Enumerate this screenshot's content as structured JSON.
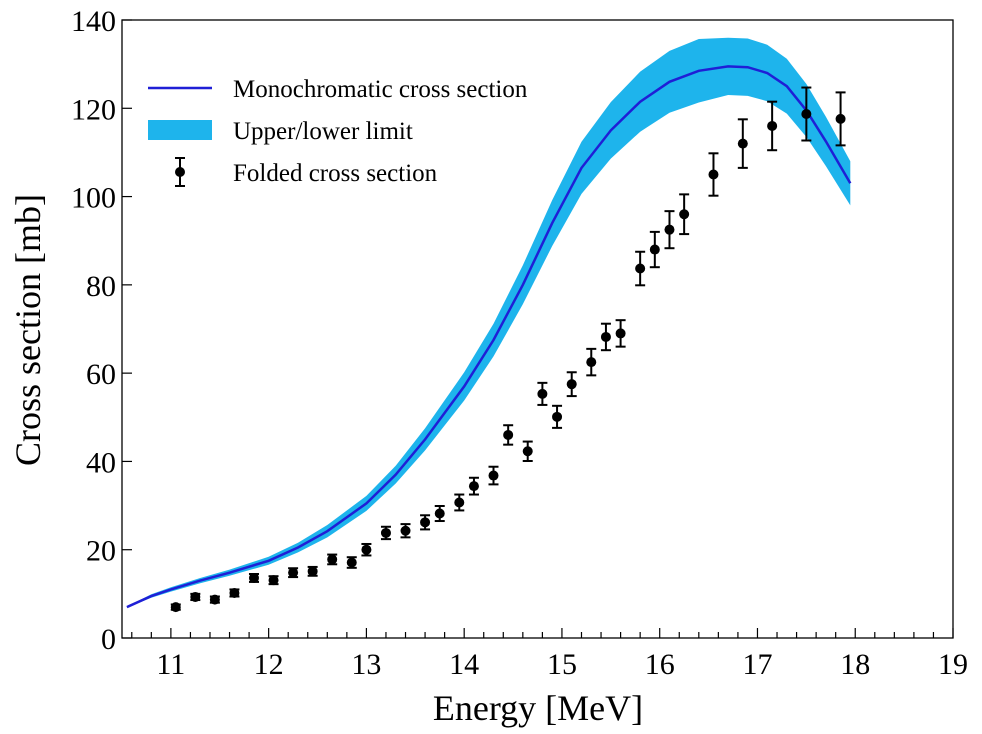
{
  "chart_data": {
    "type": "line",
    "xlabel": "Energy [MeV]",
    "ylabel": "Cross section [mb]",
    "xlim": [
      10.5,
      19
    ],
    "ylim": [
      0,
      140
    ],
    "xticks": [
      11,
      12,
      13,
      14,
      15,
      16,
      17,
      18,
      19
    ],
    "yticks": [
      0,
      20,
      40,
      60,
      80,
      100,
      120,
      140
    ],
    "grid": false,
    "legend_position": "top-left",
    "colors": {
      "curve": "#1f1fd6",
      "band": "#1eb4ec",
      "points": "#000000"
    },
    "series": [
      {
        "name": "Monochromatic cross section",
        "kind": "line",
        "x": [
          10.55,
          10.8,
          11.0,
          11.3,
          11.6,
          12.0,
          12.3,
          12.6,
          13.0,
          13.3,
          13.6,
          14.0,
          14.3,
          14.6,
          14.9,
          15.2,
          15.5,
          15.8,
          16.1,
          16.4,
          16.7,
          16.9,
          17.1,
          17.3,
          17.5,
          17.7,
          17.95
        ],
        "y": [
          7,
          9.5,
          11,
          13,
          14.8,
          17.5,
          20.5,
          24.2,
          30.5,
          37,
          45,
          57,
          67.5,
          80,
          94,
          106.5,
          115,
          121.5,
          126,
          128.5,
          129.5,
          129.3,
          128,
          125,
          119.5,
          112.5,
          103
        ]
      },
      {
        "name": "Upper/lower limit",
        "kind": "band",
        "x": [
          10.55,
          10.8,
          11.0,
          11.3,
          11.6,
          12.0,
          12.3,
          12.6,
          13.0,
          13.3,
          13.6,
          14.0,
          14.3,
          14.6,
          14.9,
          15.2,
          15.5,
          15.8,
          16.1,
          16.4,
          16.7,
          16.9,
          17.1,
          17.3,
          17.5,
          17.7,
          17.95
        ],
        "upper": [
          7.1,
          9.9,
          11.5,
          13.6,
          15.5,
          18.4,
          21.6,
          25.6,
          32.2,
          39.0,
          47.5,
          60.2,
          71.2,
          84.4,
          99.2,
          112.4,
          121.4,
          128.3,
          133.0,
          135.7,
          136.0,
          135.8,
          134.4,
          131.2,
          125.5,
          118.1,
          108.0
        ],
        "lower": [
          6.9,
          9.1,
          10.5,
          12.4,
          14.1,
          16.6,
          19.4,
          22.8,
          28.8,
          35.0,
          42.5,
          53.8,
          63.8,
          75.6,
          88.8,
          100.6,
          108.6,
          114.7,
          119.0,
          121.3,
          123.0,
          122.8,
          121.6,
          118.8,
          113.5,
          106.9,
          98.0
        ]
      },
      {
        "name": "Folded cross section",
        "kind": "scatter-errorbar",
        "x": [
          11.05,
          11.25,
          11.45,
          11.65,
          11.85,
          12.05,
          12.25,
          12.45,
          12.65,
          12.85,
          13.0,
          13.2,
          13.4,
          13.6,
          13.75,
          13.95,
          14.1,
          14.3,
          14.45,
          14.65,
          14.8,
          14.95,
          15.1,
          15.3,
          15.45,
          15.6,
          15.8,
          15.95,
          16.1,
          16.25,
          16.55,
          16.85,
          17.15,
          17.5,
          17.85
        ],
        "y": [
          7,
          9.3,
          8.7,
          10.2,
          13.6,
          13.1,
          14.8,
          15.1,
          17.8,
          17.1,
          20,
          23.8,
          24.3,
          26.2,
          28.2,
          30.7,
          34.4,
          36.8,
          46,
          42.3,
          55.3,
          50.1,
          57.5,
          62.5,
          68.2,
          69,
          83.7,
          88,
          92.5,
          96,
          105,
          112,
          116,
          118.7,
          117.6
        ],
        "err": [
          0.6,
          0.7,
          0.7,
          0.8,
          0.9,
          0.9,
          1.0,
          1.0,
          1.1,
          1.2,
          1.3,
          1.4,
          1.5,
          1.6,
          1.7,
          1.8,
          1.9,
          2.0,
          2.2,
          2.2,
          2.5,
          2.5,
          2.7,
          3.0,
          3.0,
          3.0,
          3.8,
          4.0,
          4.2,
          4.5,
          4.8,
          5.5,
          5.5,
          6.0,
          6.0
        ]
      }
    ]
  }
}
